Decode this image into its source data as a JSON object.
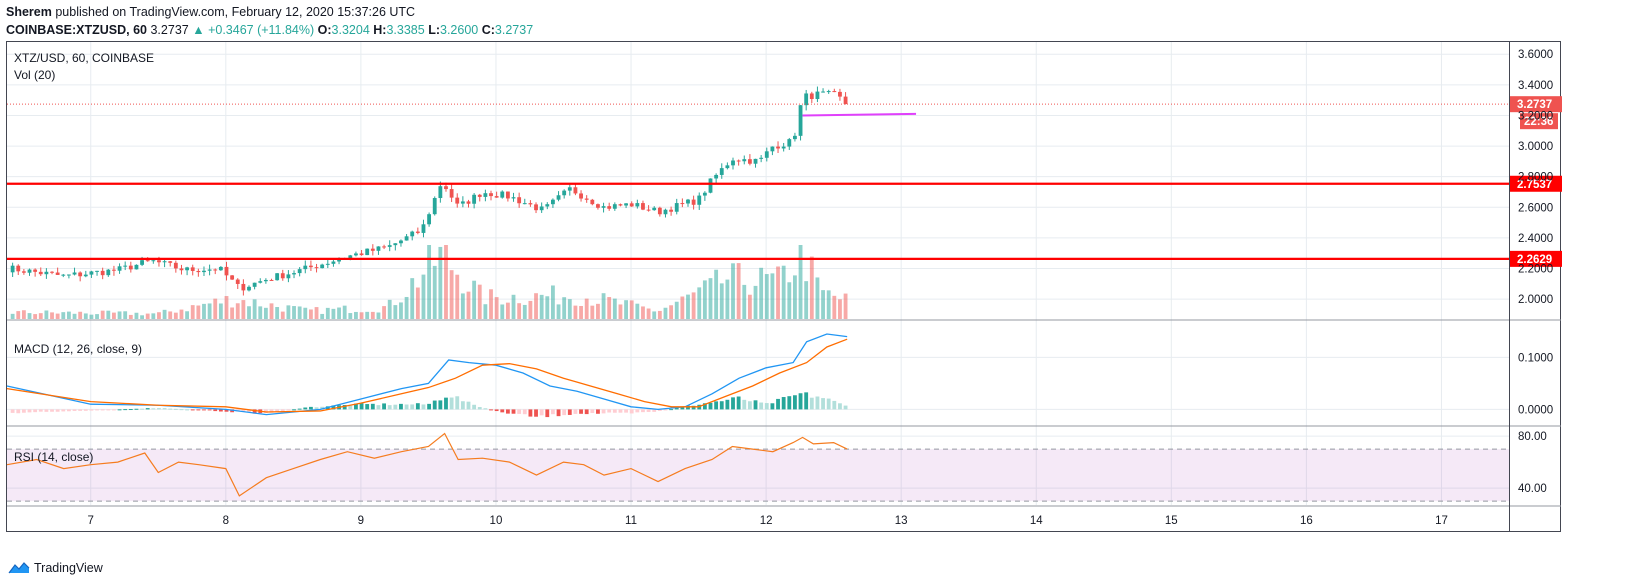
{
  "header": {
    "author": "Sherem",
    "published": "published on TradingView.com, February 12, 2020 15:37:26 UTC"
  },
  "ohlc": {
    "symbol": "COINBASE:XTZUSD, 60",
    "last": "3.2737",
    "change_arrow": "▲",
    "change": "+0.3467 (+11.84%)",
    "o_label": "O:",
    "o": "3.3204",
    "h_label": "H:",
    "h": "3.3385",
    "l_label": "L:",
    "l": "3.2600",
    "c_label": "C:",
    "c": "3.2737"
  },
  "footer": {
    "brand": "TradingView",
    "icon": "tradingview-logo-icon"
  },
  "colors": {
    "up": "#26a69a",
    "down": "#ef5350",
    "support": "#ff0000",
    "trend": "#e040fb",
    "macd": "#2196f3",
    "signal": "#ff6d00",
    "rsi": "#f57c1f",
    "rsi_band": "#9c27b0"
  },
  "chart_data": [
    {
      "type": "candlestick",
      "pane": "price",
      "title": "XTZ/USD, 60, COINBASE",
      "volume_label": "Vol (20)",
      "x_ticks": [
        "7",
        "8",
        "9",
        "10",
        "11",
        "12",
        "13",
        "14",
        "15",
        "16",
        "17"
      ],
      "x_range": [
        6.38,
        17.5
      ],
      "ylim": [
        1.87,
        3.68
      ],
      "y_ticks": [
        2.0,
        2.2,
        2.4,
        2.6,
        2.8,
        3.0,
        3.2,
        3.4,
        3.6
      ],
      "y_tick_labels": [
        "2.0000",
        "2.2000",
        "2.4000",
        "2.6000",
        "2.8000",
        "3.0000",
        "3.2000",
        "3.4000",
        "3.6000"
      ],
      "last_price_tag": "3.2737",
      "countdown_tag": "22:36",
      "horizontal_lines": [
        {
          "value": 2.7537,
          "label": "2.7537"
        },
        {
          "value": 2.2629,
          "label": "2.2629"
        }
      ],
      "trend_segment": {
        "x": [
          12.27,
          13.11
        ],
        "y": [
          3.2,
          3.21
        ]
      },
      "anchors": [
        [
          6.4,
          2.2
        ],
        [
          6.8,
          2.15
        ],
        [
          7.2,
          2.19
        ],
        [
          7.45,
          2.25
        ],
        [
          7.7,
          2.19
        ],
        [
          7.95,
          2.2
        ],
        [
          8.1,
          2.07
        ],
        [
          8.3,
          2.13
        ],
        [
          8.6,
          2.2
        ],
        [
          8.9,
          2.28
        ],
        [
          9.2,
          2.34
        ],
        [
          9.45,
          2.45
        ],
        [
          9.6,
          2.77
        ],
        [
          9.72,
          2.6
        ],
        [
          9.9,
          2.7
        ],
        [
          10.1,
          2.67
        ],
        [
          10.35,
          2.58
        ],
        [
          10.55,
          2.72
        ],
        [
          10.8,
          2.6
        ],
        [
          11.0,
          2.62
        ],
        [
          11.2,
          2.57
        ],
        [
          11.5,
          2.65
        ],
        [
          11.6,
          2.78
        ],
        [
          11.75,
          2.92
        ],
        [
          11.95,
          2.9
        ],
        [
          12.05,
          3.0
        ],
        [
          12.2,
          3.03
        ],
        [
          12.27,
          3.32
        ],
        [
          12.4,
          3.34
        ],
        [
          12.52,
          3.33
        ],
        [
          12.6,
          3.27
        ]
      ],
      "volume_anchors": [
        [
          6.4,
          0.25
        ],
        [
          7.5,
          0.2
        ],
        [
          8.05,
          0.75
        ],
        [
          8.6,
          0.3
        ],
        [
          9.2,
          0.45
        ],
        [
          9.6,
          2.4
        ],
        [
          9.9,
          0.8
        ],
        [
          10.6,
          0.9
        ],
        [
          11.2,
          0.3
        ],
        [
          11.6,
          1.2
        ],
        [
          11.7,
          1.5
        ],
        [
          12.1,
          1.4
        ],
        [
          12.27,
          2.5
        ],
        [
          12.4,
          1.0
        ],
        [
          12.6,
          0.7
        ]
      ]
    },
    {
      "type": "line",
      "pane": "macd",
      "title": "MACD (12, 26, close, 9)",
      "ylim": [
        -0.03,
        0.17
      ],
      "y_ticks": [
        0.0,
        0.1
      ],
      "y_tick_labels": [
        "0.0000",
        "0.1000"
      ],
      "series": [
        {
          "role": "macd",
          "x": [
            6.38,
            7.0,
            7.5,
            8.0,
            8.3,
            8.7,
            9.0,
            9.3,
            9.5,
            9.65,
            9.8,
            10.0,
            10.2,
            10.4,
            10.6,
            10.8,
            11.0,
            11.2,
            11.4,
            11.6,
            11.8,
            12.0,
            12.2,
            12.3,
            12.45,
            12.6
          ],
          "y": [
            0.045,
            0.01,
            0.008,
            0.0,
            -0.01,
            0.0,
            0.02,
            0.04,
            0.05,
            0.095,
            0.09,
            0.085,
            0.07,
            0.045,
            0.035,
            0.02,
            0.005,
            0.0,
            0.005,
            0.03,
            0.06,
            0.08,
            0.09,
            0.13,
            0.145,
            0.14
          ]
        },
        {
          "role": "signal",
          "x": [
            6.38,
            7.0,
            7.5,
            8.0,
            8.3,
            8.7,
            9.0,
            9.3,
            9.5,
            9.7,
            9.9,
            10.1,
            10.3,
            10.5,
            10.7,
            10.9,
            11.1,
            11.3,
            11.5,
            11.7,
            11.9,
            12.1,
            12.3,
            12.45,
            12.6
          ],
          "y": [
            0.04,
            0.015,
            0.008,
            0.005,
            -0.005,
            -0.003,
            0.012,
            0.03,
            0.042,
            0.06,
            0.085,
            0.088,
            0.078,
            0.06,
            0.045,
            0.03,
            0.015,
            0.005,
            0.005,
            0.025,
            0.045,
            0.07,
            0.09,
            0.12,
            0.135
          ]
        }
      ],
      "histogram_anchors": [
        [
          6.38,
          -0.008
        ],
        [
          7.0,
          -0.002
        ],
        [
          7.5,
          0.003
        ],
        [
          8.0,
          -0.004
        ],
        [
          8.3,
          -0.008
        ],
        [
          8.6,
          0.004
        ],
        [
          9.0,
          0.01
        ],
        [
          9.5,
          0.01
        ],
        [
          9.65,
          0.03
        ],
        [
          9.8,
          0.012
        ],
        [
          10.0,
          -0.004
        ],
        [
          10.3,
          -0.015
        ],
        [
          10.6,
          -0.008
        ],
        [
          11.0,
          -0.008
        ],
        [
          11.2,
          -0.004
        ],
        [
          11.5,
          0.01
        ],
        [
          11.8,
          0.022
        ],
        [
          12.0,
          0.01
        ],
        [
          12.25,
          0.03
        ],
        [
          12.4,
          0.025
        ],
        [
          12.6,
          0.006
        ]
      ]
    },
    {
      "type": "line",
      "pane": "rsi",
      "title": "RSI (14, close)",
      "ylim": [
        27,
        87
      ],
      "y_ticks": [
        40,
        80
      ],
      "y_tick_labels": [
        "40.00",
        "80.00"
      ],
      "band": [
        30,
        70
      ],
      "x": [
        6.38,
        6.6,
        6.8,
        7.0,
        7.2,
        7.4,
        7.5,
        7.65,
        7.8,
        8.0,
        8.1,
        8.3,
        8.5,
        8.7,
        8.9,
        9.1,
        9.3,
        9.5,
        9.62,
        9.72,
        9.9,
        10.1,
        10.3,
        10.5,
        10.65,
        10.8,
        11.0,
        11.2,
        11.4,
        11.6,
        11.75,
        11.9,
        12.05,
        12.2,
        12.27,
        12.35,
        12.5,
        12.6
      ],
      "y": [
        58,
        62,
        55,
        58,
        60,
        67,
        52,
        60,
        58,
        55,
        34,
        48,
        55,
        62,
        68,
        63,
        68,
        72,
        82,
        62,
        63,
        60,
        50,
        60,
        58,
        50,
        55,
        45,
        55,
        62,
        72,
        70,
        68,
        75,
        79,
        74,
        75,
        70
      ]
    }
  ]
}
